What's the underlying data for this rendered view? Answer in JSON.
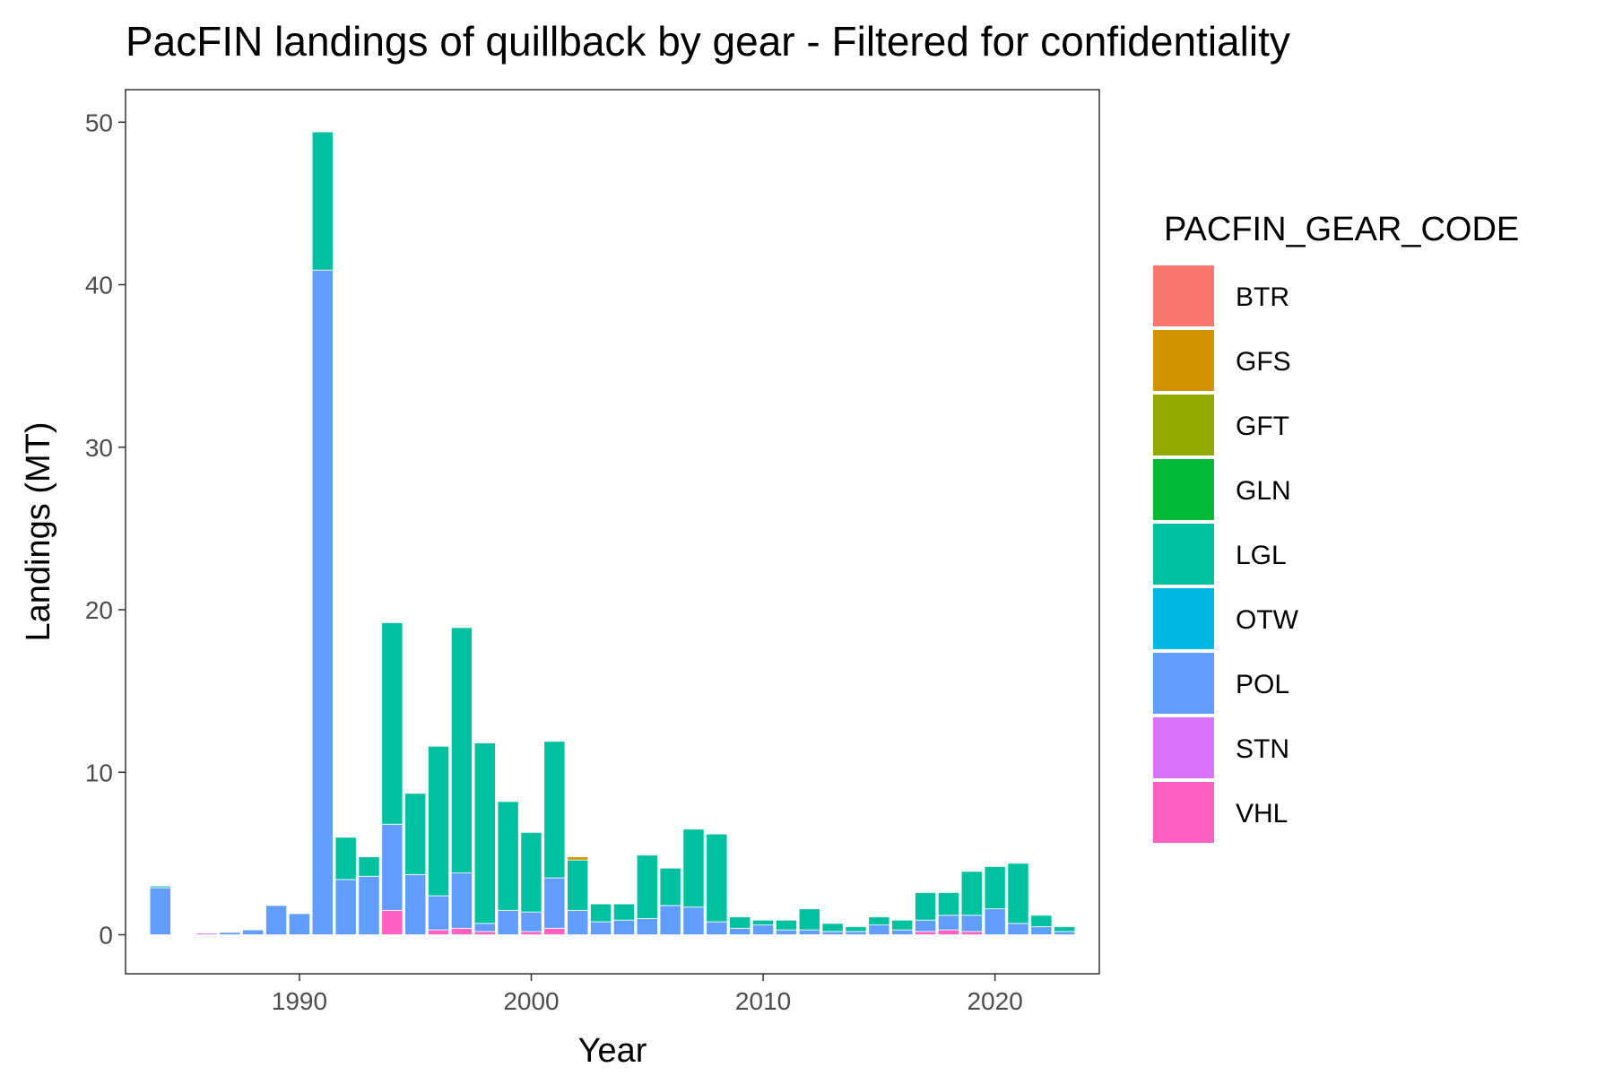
{
  "chart_data": {
    "type": "bar",
    "stacked": true,
    "title": "PacFIN landings of quillback by gear - Filtered for confidentiality",
    "xlabel": "Year",
    "ylabel": "Landings (MT)",
    "xlim": [
      1982.5,
      2024.5
    ],
    "ylim": [
      -2.4,
      52
    ],
    "x_ticks": [
      1990,
      2000,
      2010,
      2020
    ],
    "y_ticks": [
      0,
      10,
      20,
      30,
      40,
      50
    ],
    "grid": false,
    "legend": {
      "title": "PACFIN_GEAR_CODE",
      "position": "right",
      "items": [
        "BTR",
        "GFS",
        "GFT",
        "GLN",
        "LGL",
        "OTW",
        "POL",
        "STN",
        "VHL"
      ]
    },
    "colors": {
      "BTR": "#F8766D",
      "GFS": "#D39200",
      "GFT": "#93AA00",
      "GLN": "#00BA38",
      "LGL": "#00C19F",
      "OTW": "#00B9E3",
      "POL": "#619CFF",
      "STN": "#DB72FB",
      "VHL": "#FF61C3"
    },
    "stack_order": [
      "VHL",
      "STN",
      "POL",
      "OTW",
      "LGL",
      "GLN",
      "GFT",
      "GFS",
      "BTR"
    ],
    "bars": [
      {
        "year": 1984,
        "POL": 2.9,
        "LGL": 0.1
      },
      {
        "year": 1986,
        "STN": 0.1
      },
      {
        "year": 1987,
        "POL": 0.15
      },
      {
        "year": 1988,
        "POL": 0.3
      },
      {
        "year": 1989,
        "POL": 1.8
      },
      {
        "year": 1990,
        "POL": 1.3
      },
      {
        "year": 1991,
        "POL": 40.9,
        "LGL": 8.5
      },
      {
        "year": 1992,
        "POL": 3.4,
        "LGL": 2.6
      },
      {
        "year": 1993,
        "POL": 3.6,
        "LGL": 1.2
      },
      {
        "year": 1994,
        "VHL": 1.5,
        "POL": 5.3,
        "LGL": 12.4
      },
      {
        "year": 1995,
        "POL": 3.7,
        "LGL": 5.0
      },
      {
        "year": 1996,
        "VHL": 0.3,
        "POL": 2.1,
        "LGL": 9.2
      },
      {
        "year": 1997,
        "VHL": 0.4,
        "POL": 3.4,
        "LGL": 15.1
      },
      {
        "year": 1998,
        "VHL": 0.2,
        "POL": 0.5,
        "LGL": 11.1
      },
      {
        "year": 1999,
        "POL": 1.5,
        "LGL": 6.7
      },
      {
        "year": 2000,
        "VHL": 0.2,
        "POL": 1.2,
        "LGL": 4.9
      },
      {
        "year": 2001,
        "VHL": 0.4,
        "POL": 3.1,
        "LGL": 8.4
      },
      {
        "year": 2002,
        "POL": 1.5,
        "LGL": 3.1,
        "GFS": 0.2
      },
      {
        "year": 2003,
        "POL": 0.8,
        "LGL": 1.1
      },
      {
        "year": 2004,
        "POL": 0.9,
        "LGL": 1.0
      },
      {
        "year": 2005,
        "POL": 1.0,
        "LGL": 3.9
      },
      {
        "year": 2006,
        "POL": 1.8,
        "LGL": 2.3
      },
      {
        "year": 2007,
        "POL": 1.7,
        "LGL": 4.8
      },
      {
        "year": 2008,
        "POL": 0.8,
        "LGL": 5.4
      },
      {
        "year": 2009,
        "POL": 0.4,
        "LGL": 0.7
      },
      {
        "year": 2010,
        "POL": 0.6,
        "LGL": 0.3
      },
      {
        "year": 2011,
        "POL": 0.3,
        "LGL": 0.6
      },
      {
        "year": 2012,
        "POL": 0.3,
        "LGL": 1.3
      },
      {
        "year": 2013,
        "POL": 0.2,
        "LGL": 0.5
      },
      {
        "year": 2014,
        "POL": 0.2,
        "LGL": 0.3
      },
      {
        "year": 2015,
        "POL": 0.6,
        "LGL": 0.5
      },
      {
        "year": 2016,
        "POL": 0.3,
        "LGL": 0.6
      },
      {
        "year": 2017,
        "VHL": 0.2,
        "POL": 0.7,
        "LGL": 1.7
      },
      {
        "year": 2018,
        "VHL": 0.3,
        "POL": 0.9,
        "LGL": 1.4
      },
      {
        "year": 2019,
        "VHL": 0.2,
        "POL": 1.0,
        "LGL": 2.7
      },
      {
        "year": 2020,
        "POL": 1.6,
        "LGL": 2.6
      },
      {
        "year": 2021,
        "POL": 0.7,
        "LGL": 3.7
      },
      {
        "year": 2022,
        "POL": 0.5,
        "LGL": 0.7
      },
      {
        "year": 2023,
        "POL": 0.2,
        "LGL": 0.3
      }
    ]
  }
}
